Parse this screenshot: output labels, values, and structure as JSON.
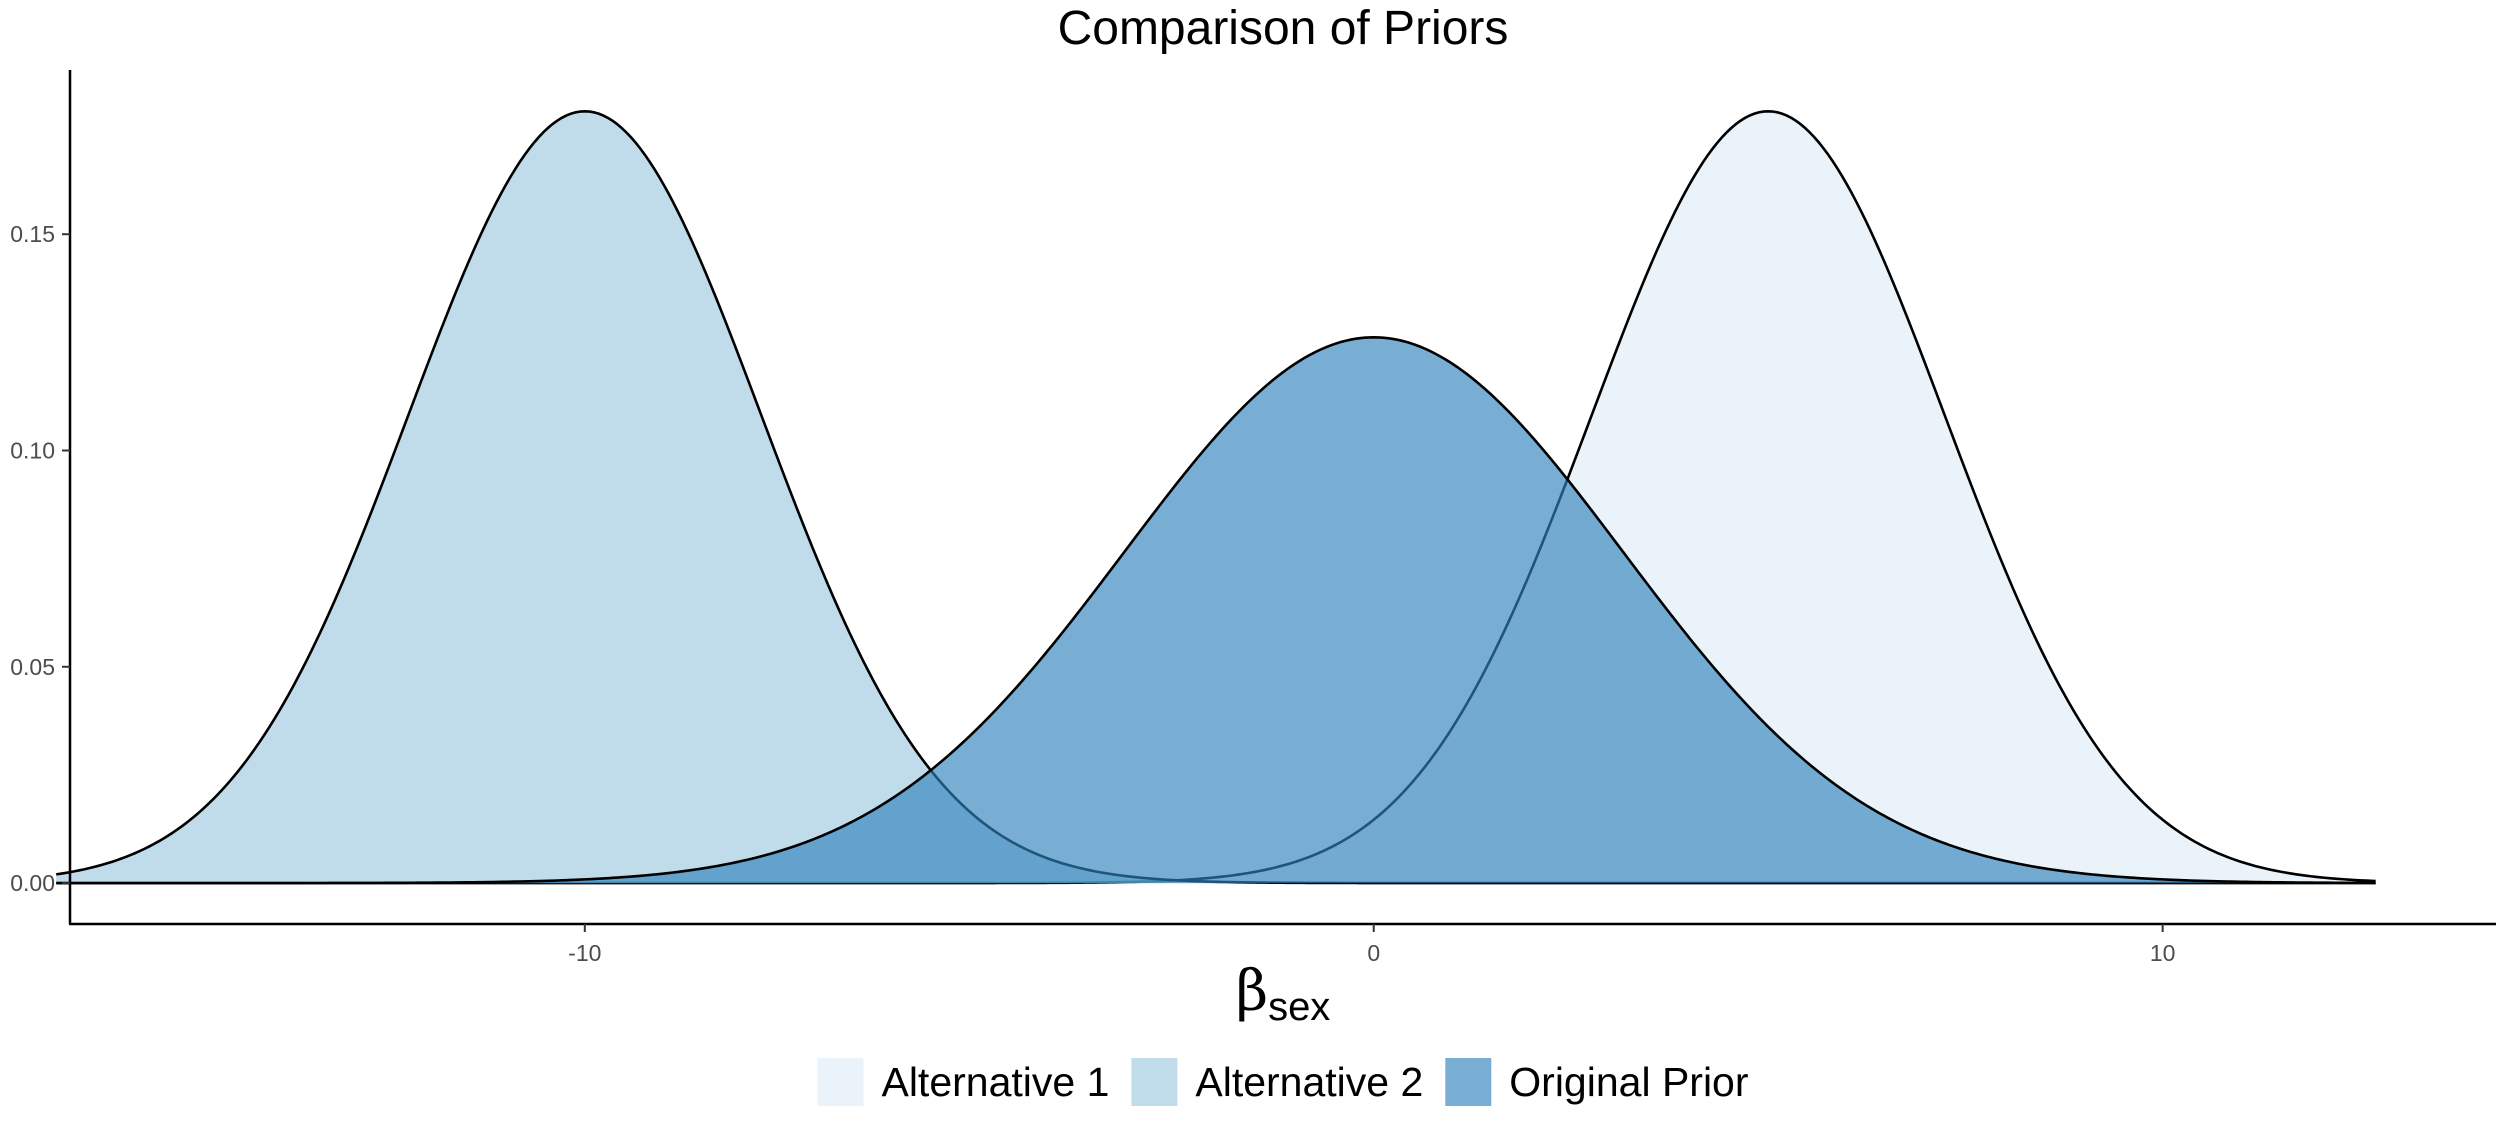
{
  "chart_data": {
    "type": "area",
    "title": "Comparison of Priors",
    "xlabel": {
      "symbol": "β",
      "subscript": "sex"
    },
    "ylabel": "",
    "xlim": [
      -16.5,
      14.2
    ],
    "ylim": [
      -0.009,
      0.1875
    ],
    "x_range": [
      -16.7,
      12.7
    ],
    "x_ticks": [
      -10,
      0,
      10
    ],
    "x_tick_labels": [
      "-10",
      "0",
      "10"
    ],
    "y_ticks": [
      0.0,
      0.05,
      0.1,
      0.15
    ],
    "y_tick_labels": [
      "0.00",
      "0.05",
      "0.10",
      "0.15"
    ],
    "grid": false,
    "legend_position": "bottom",
    "series": [
      {
        "name": "Alternative 1",
        "distribution": "normal",
        "mean": 5,
        "sd": 2.236,
        "peak_density": 0.178,
        "fill": "#deebf7"
      },
      {
        "name": "Alternative 2",
        "distribution": "normal",
        "mean": -10,
        "sd": 2.236,
        "peak_density": 0.178,
        "fill": "#9ecae1"
      },
      {
        "name": "Original Prior",
        "distribution": "normal",
        "mean": 0,
        "sd": 3.162,
        "peak_density": 0.126,
        "fill": "#3182bd"
      }
    ],
    "fill_opacity": 0.65,
    "outline_color": "#000000"
  }
}
